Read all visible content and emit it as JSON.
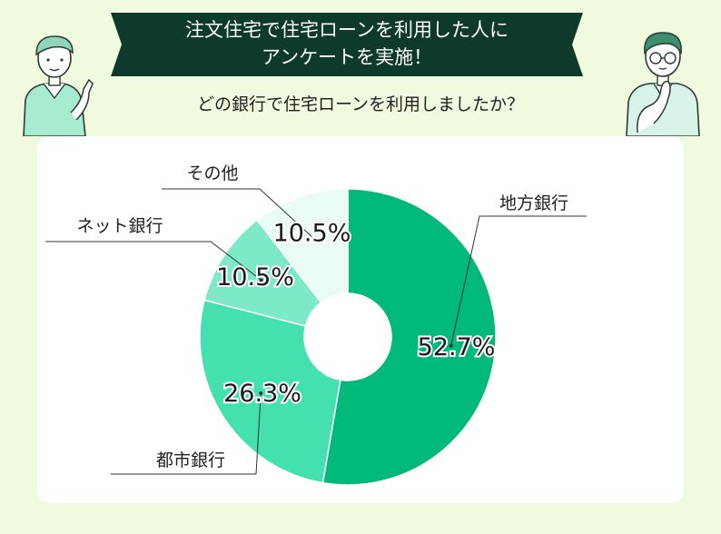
{
  "header": {
    "title_line1": "注文住宅で住宅ローンを利用した人に",
    "title_line2": "アンケートを実施！",
    "question": "どの銀行で住宅ローンを利用しましたか？"
  },
  "colors": {
    "background": "#effadf",
    "banner": "#0d3a2b",
    "card": "#ffffff",
    "slices": [
      "#00b97b",
      "#44e0b0",
      "#7ee9c8",
      "#e9fbf4"
    ]
  },
  "chart_data": {
    "type": "pie",
    "donut": true,
    "categories": [
      "地方銀行",
      "都市銀行",
      "ネット銀行",
      "その他"
    ],
    "values": [
      52.7,
      26.3,
      10.5,
      10.5
    ],
    "value_labels": [
      "52.7%",
      "26.3%",
      "10.5%",
      "10.5%"
    ],
    "legend": "callout-labels"
  }
}
